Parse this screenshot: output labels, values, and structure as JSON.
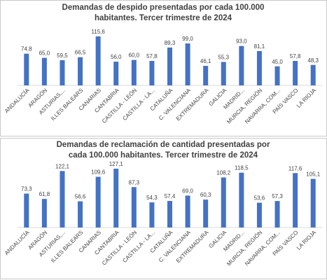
{
  "chart_data": [
    {
      "type": "bar",
      "title": [
        "Demandas de despido presentadas por cada 100.000",
        "habitantes. Tercer trimestre de 2024"
      ],
      "categories": [
        "ANDALUCÍA",
        "ARAGÓN",
        "ASTURIAS,...",
        "ILLES BALEARS",
        "CANARIAS",
        "CANTABRIA",
        "CASTILLA - LEÓN",
        "CASTILLA - LA...",
        "CATALUÑA",
        "C. VALENCIANA",
        "EXTREMADURA",
        "GALICIA",
        "MADRID...",
        "MURCIA, REGIÓN",
        "NAVARRA, COM...",
        "PAÍS VASCO",
        "LA RIOJA"
      ],
      "values": [
        74.8,
        65.0,
        59.5,
        66.5,
        115.6,
        56.0,
        60.0,
        57.8,
        89.3,
        99.0,
        46.1,
        55.3,
        93.0,
        81.1,
        45.0,
        57.8,
        48.3
      ],
      "value_labels": [
        "74,8",
        "65,0",
        "59,5",
        "66,5",
        "115,6",
        "56,0",
        "60,0",
        "57,8",
        "89,3",
        "99,0",
        "46,1",
        "55,3",
        "93,0",
        "81,1",
        "45,0",
        "57,8",
        "48,3"
      ],
      "color": "#4472c4"
    },
    {
      "type": "bar",
      "title": [
        "Demandas de reclamación de cantidad presentadas por",
        "cada 100.000 habitantes. Tercer trimestre de 2024"
      ],
      "categories": [
        "ANDALUCÍA",
        "ARAGÓN",
        "ASTURIAS,...",
        "ILLES BALEARS",
        "CANARIAS",
        "CANTABRIA",
        "CASTILLA - LEÓN",
        "CASTILLA - LA...",
        "CATALUÑA",
        "C. VALENCIANA",
        "EXTREMADURA",
        "GALICIA",
        "MADRID...",
        "MURCIA, REGIÓN",
        "NAVARRA, COM...",
        "PAÍS VASCO",
        "LA RIOJA"
      ],
      "values": [
        73.3,
        61.8,
        122.1,
        56.6,
        109.6,
        127.1,
        87.3,
        54.3,
        57.4,
        69.0,
        60.3,
        108.2,
        118.5,
        53.6,
        57.3,
        117.6,
        105.1
      ],
      "value_labels": [
        "73,3",
        "61,8",
        "122,1",
        "56,6",
        "109,6",
        "127,1",
        "87,3",
        "54,3",
        "57,4",
        "69,0",
        "60,3",
        "108,2",
        "118,5",
        "53,6",
        "57,3",
        "117,6",
        "105,1"
      ],
      "color": "#4472c4"
    }
  ]
}
